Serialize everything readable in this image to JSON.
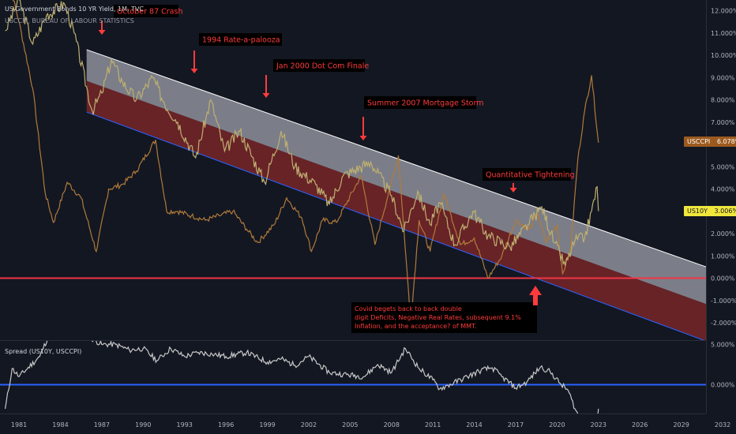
{
  "header": {
    "title": "US Government Bonds 10 YR Yield, 1M, TVC",
    "subtitle": "USCCPI, BUREAU OF LABOUR STATISTICS"
  },
  "colors": {
    "background": "#131722",
    "yield_line": "#bfb070",
    "cpi_line": "#b07a3a",
    "spread_line": "#c8c8c8",
    "annotation_text": "#ff3b3b",
    "annotation_box": "#000000",
    "zero_line_top": "#f23645",
    "zero_line_bottom": "#2962ff",
    "channel_upper_fill": "#d1d4dc",
    "channel_lower_fill": "#a12b2b",
    "channel_bottom_line": "#2962ff",
    "axis_text": "#b2b5be"
  },
  "annotations": [
    {
      "text": "October 87 Crash",
      "year": 1987.9,
      "arrow": "down"
    },
    {
      "text": "1994 Rate-a-palooza",
      "year": 1994.7,
      "arrow": "down"
    },
    {
      "text": "Jan 2000 Dot Com Finale",
      "year": 2000.1,
      "arrow": "down"
    },
    {
      "text": "Summer 2007 Mortgage Storm",
      "year": 2007.0,
      "arrow": "down"
    },
    {
      "text": "Quantitative Tightening",
      "year": 2018.8,
      "arrow": "down"
    },
    {
      "text": "Covid begets back to back double digit Deficits, Negative Real Rates, subsequent 9.1% Inflation, and the acceptance? of MMT.",
      "year": 2020.6,
      "arrow": "up"
    }
  ],
  "price_tags": [
    {
      "label": "USCCPI",
      "value": "6.078%",
      "color": "#9c5a1f"
    },
    {
      "label": "US10Y",
      "value": "3.006%",
      "color": "#f0e63c"
    }
  ],
  "chart_data": {
    "type": "line",
    "x_axis": {
      "type": "year",
      "range": [
        1980,
        2033
      ],
      "tick_labels": [
        "1981",
        "1984",
        "1987",
        "1990",
        "1993",
        "1996",
        "1999",
        "2002",
        "2005",
        "2008",
        "2011",
        "2014",
        "2017",
        "2020",
        "2023",
        "2026",
        "2029",
        "2032"
      ]
    },
    "top_panel": {
      "y_axis": {
        "unit": "%",
        "range": [
          -2.7,
          12.3
        ],
        "tick_labels": [
          "12.000%",
          "11.000%",
          "10.000%",
          "9.000%",
          "8.000%",
          "7.000%",
          "6.000%",
          "5.000%",
          "4.000%",
          "3.000%",
          "2.000%",
          "1.000%",
          "0.000%",
          "-1.000%",
          "-2.000%"
        ]
      },
      "series": [
        {
          "name": "US10Y",
          "points": [
            [
              1980.0,
              11.1
            ],
            [
              1981.0,
              12.5
            ],
            [
              1982.0,
              10.5
            ],
            [
              1983.0,
              11.8
            ],
            [
              1984.3,
              12.3
            ],
            [
              1985.0,
              11.0
            ],
            [
              1986.3,
              7.5
            ],
            [
              1987.0,
              8.3
            ],
            [
              1987.7,
              9.8
            ],
            [
              1988.5,
              8.8
            ],
            [
              1989.5,
              8.0
            ],
            [
              1990.7,
              9.0
            ],
            [
              1991.5,
              7.9
            ],
            [
              1992.5,
              7.0
            ],
            [
              1993.8,
              5.4
            ],
            [
              1994.9,
              8.0
            ],
            [
              1995.9,
              5.7
            ],
            [
              1997.0,
              6.6
            ],
            [
              1998.8,
              4.3
            ],
            [
              2000.0,
              6.6
            ],
            [
              2001.0,
              5.0
            ],
            [
              2002.5,
              4.2
            ],
            [
              2003.5,
              3.3
            ],
            [
              2004.5,
              4.6
            ],
            [
              2006.5,
              5.2
            ],
            [
              2008.0,
              3.7
            ],
            [
              2008.9,
              2.1
            ],
            [
              2009.9,
              3.9
            ],
            [
              2010.8,
              2.4
            ],
            [
              2011.5,
              3.4
            ],
            [
              2012.6,
              1.5
            ],
            [
              2013.9,
              3.0
            ],
            [
              2015.0,
              1.9
            ],
            [
              2016.6,
              1.4
            ],
            [
              2017.9,
              2.4
            ],
            [
              2018.9,
              3.2
            ],
            [
              2019.8,
              1.6
            ],
            [
              2020.6,
              0.55
            ],
            [
              2021.3,
              1.7
            ],
            [
              2022.0,
              1.8
            ],
            [
              2022.5,
              3.0
            ],
            [
              2022.9,
              4.1
            ],
            [
              2023.0,
              3.006
            ]
          ]
        },
        {
          "name": "USCCPI",
          "points": [
            [
              1980.0,
              14.0
            ],
            [
              1981.0,
              11.5
            ],
            [
              1982.0,
              8.5
            ],
            [
              1982.9,
              3.8
            ],
            [
              1983.5,
              2.5
            ],
            [
              1984.5,
              4.3
            ],
            [
              1985.5,
              3.6
            ],
            [
              1986.6,
              1.2
            ],
            [
              1987.5,
              4.0
            ],
            [
              1988.5,
              4.2
            ],
            [
              1989.5,
              4.8
            ],
            [
              1990.9,
              6.2
            ],
            [
              1991.7,
              3.0
            ],
            [
              1992.5,
              3.0
            ],
            [
              1993.5,
              2.8
            ],
            [
              1994.5,
              2.6
            ],
            [
              1995.5,
              2.8
            ],
            [
              1996.5,
              3.0
            ],
            [
              1997.5,
              2.2
            ],
            [
              1998.3,
              1.6
            ],
            [
              1999.5,
              2.4
            ],
            [
              2000.4,
              3.6
            ],
            [
              2001.5,
              2.7
            ],
            [
              2002.2,
              1.2
            ],
            [
              2003.0,
              2.6
            ],
            [
              2004.0,
              2.5
            ],
            [
              2005.8,
              4.6
            ],
            [
              2006.8,
              1.5
            ],
            [
              2007.9,
              4.1
            ],
            [
              2008.5,
              5.5
            ],
            [
              2009.4,
              -2.0
            ],
            [
              2010.0,
              2.6
            ],
            [
              2010.8,
              1.2
            ],
            [
              2011.8,
              3.8
            ],
            [
              2013.0,
              1.5
            ],
            [
              2014.0,
              1.8
            ],
            [
              2015.0,
              0.0
            ],
            [
              2016.0,
              1.0
            ],
            [
              2017.0,
              2.6
            ],
            [
              2018.0,
              2.2
            ],
            [
              2018.6,
              2.9
            ],
            [
              2019.2,
              1.6
            ],
            [
              2020.0,
              2.4
            ],
            [
              2020.4,
              0.2
            ],
            [
              2021.0,
              1.4
            ],
            [
              2021.5,
              5.3
            ],
            [
              2022.0,
              7.5
            ],
            [
              2022.5,
              9.1
            ],
            [
              2023.0,
              6.078
            ]
          ]
        }
      ],
      "reference_line": 0,
      "channel": {
        "start": {
          "year": 1985.9,
          "upper": 10.25,
          "middle": 8.85,
          "lower": 7.45
        },
        "end": {
          "year": 2033.0,
          "upper": 0.03,
          "middle": -1.65,
          "lower": -3.33
        }
      }
    },
    "bottom_panel": {
      "y_axis": {
        "unit": "%",
        "tick_labels": [
          "5.000%",
          "0.000%"
        ]
      },
      "series": [
        {
          "name": "Spread (US10Y, USCCPI)",
          "points": [
            [
              1980.0,
              -3.0
            ],
            [
              1980.5,
              2.0
            ],
            [
              1981.0,
              1.0
            ],
            [
              1982.5,
              3.5
            ],
            [
              1983.5,
              7.5
            ],
            [
              1984.5,
              8.0
            ],
            [
              1986.0,
              6.0
            ],
            [
              1987.0,
              5.0
            ],
            [
              1988.0,
              5.0
            ],
            [
              1989.0,
              4.3
            ],
            [
              1990.0,
              4.5
            ],
            [
              1991.0,
              3.0
            ],
            [
              1992.0,
              4.5
            ],
            [
              1993.0,
              3.5
            ],
            [
              1994.0,
              4.0
            ],
            [
              1995.0,
              3.8
            ],
            [
              1996.0,
              3.5
            ],
            [
              1997.5,
              4.0
            ],
            [
              1999.0,
              2.8
            ],
            [
              2000.0,
              3.2
            ],
            [
              2001.0,
              2.4
            ],
            [
              2002.0,
              3.5
            ],
            [
              2003.5,
              1.5
            ],
            [
              2004.5,
              1.3
            ],
            [
              2006.0,
              1.0
            ],
            [
              2007.0,
              2.5
            ],
            [
              2008.0,
              1.5
            ],
            [
              2009.0,
              4.5
            ],
            [
              2010.0,
              2.0
            ],
            [
              2011.0,
              0.6
            ],
            [
              2011.5,
              -0.5
            ],
            [
              2012.5,
              0.2
            ],
            [
              2013.5,
              1.0
            ],
            [
              2014.5,
              1.8
            ],
            [
              2015.3,
              2.1
            ],
            [
              2016.0,
              1.0
            ],
            [
              2017.0,
              -0.4
            ],
            [
              2017.8,
              0.3
            ],
            [
              2018.8,
              2.2
            ],
            [
              2019.5,
              1.6
            ],
            [
              2020.3,
              0.0
            ],
            [
              2020.8,
              -0.7
            ],
            [
              2021.3,
              -3.0
            ],
            [
              2021.8,
              -4.6
            ],
            [
              2022.4,
              -6.8
            ],
            [
              2022.8,
              -6.2
            ],
            [
              2023.0,
              -3.0
            ]
          ]
        }
      ],
      "reference_line": 0
    }
  }
}
